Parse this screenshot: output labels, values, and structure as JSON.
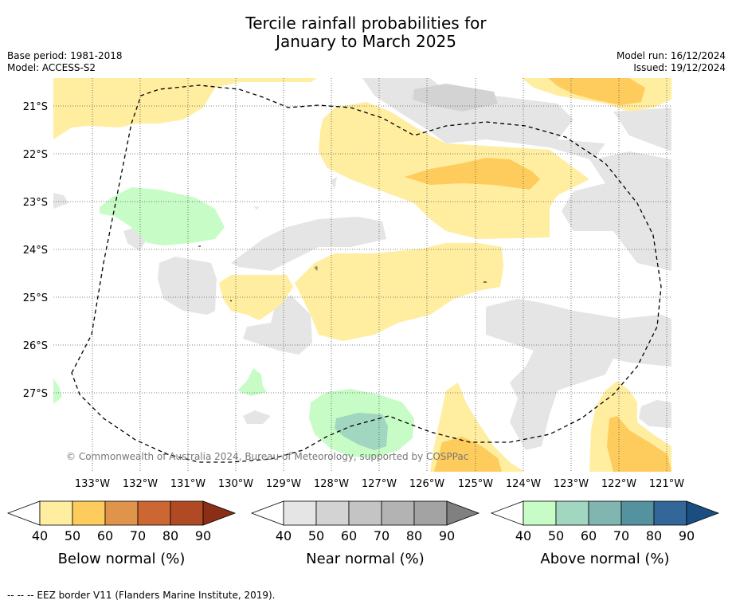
{
  "header": {
    "title_line1": "Tercile rainfall probabilities for",
    "title_line2": "January to March 2025",
    "base_period": "Base period: 1981-2018",
    "model": "Model: ACCESS-S2",
    "model_run": "Model run: 16/12/2024",
    "issued": "Issued: 19/12/2024"
  },
  "map": {
    "lat_labels": [
      "21°S",
      "22°S",
      "23°S",
      "24°S",
      "25°S",
      "26°S",
      "27°S"
    ],
    "lon_labels": [
      "133°W",
      "132°W",
      "131°W",
      "130°W",
      "129°W",
      "128°W",
      "127°W",
      "126°W",
      "125°W",
      "124°W",
      "123°W",
      "122°W",
      "121°W"
    ],
    "copyright": "© Commonwealth of Australia 2024, Bureau of Meteorology, supported by COSPPac",
    "gridlines": true,
    "eez_border": "dashed",
    "colors": {
      "below_40": "#ffeda0",
      "below_50": "#fecc5c",
      "near_40": "#e5e5e5",
      "near_50": "#d3d3d3",
      "above_40": "#c7fcc7",
      "above_50": "#a1d6c0"
    }
  },
  "legends": [
    {
      "label": "Below normal (%)",
      "ticks": [
        "40",
        "50",
        "60",
        "70",
        "80",
        "90"
      ],
      "colors": [
        "#ffffff",
        "#ffeda0",
        "#fecc5c",
        "#e0944b",
        "#cc6633",
        "#b04a25",
        "#8b2e16"
      ]
    },
    {
      "label": "Near normal (%)",
      "ticks": [
        "40",
        "50",
        "60",
        "70",
        "80",
        "90"
      ],
      "colors": [
        "#ffffff",
        "#e5e5e5",
        "#d3d3d3",
        "#c4c4c4",
        "#b3b3b3",
        "#a3a3a3",
        "#808080"
      ]
    },
    {
      "label": "Above normal (%)",
      "ticks": [
        "40",
        "50",
        "60",
        "70",
        "80",
        "90"
      ],
      "colors": [
        "#ffffff",
        "#c7fcc7",
        "#a1d6c0",
        "#80b5b0",
        "#5592a0",
        "#336699",
        "#1a4e80"
      ]
    }
  ],
  "footer": {
    "eez_note": "--  --  -- EEZ border V11 (Flanders Marine Institute, 2019)."
  }
}
